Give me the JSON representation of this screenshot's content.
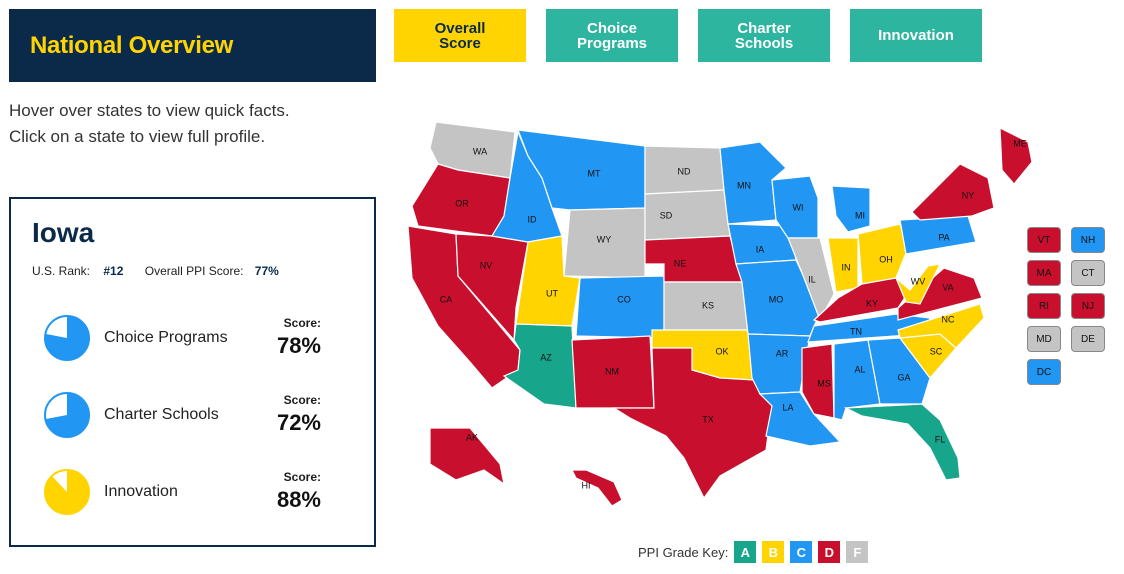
{
  "page_title": "National Overview",
  "tabs": [
    {
      "line1": "Overall",
      "line2": "Score"
    },
    {
      "line1": "Choice",
      "line2": "Programs"
    },
    {
      "line1": "Charter",
      "line2": "Schools"
    },
    {
      "line1": "Innovation",
      "line2": ""
    }
  ],
  "intro": {
    "line1": "Hover over states to view quick facts.",
    "line2": "Click on a state to view full profile."
  },
  "profile": {
    "state": "Iowa",
    "rank_label": "U.S. Rank:",
    "rank_value": "#12",
    "ppi_label": "Overall PPI Score:",
    "ppi_value": "77%",
    "score_caption": "Score:",
    "metrics": [
      {
        "label": "Choice Programs",
        "score": "78%",
        "fraction": 0.78,
        "color": "#2196f3"
      },
      {
        "label": "Charter Schools",
        "score": "72%",
        "fraction": 0.72,
        "color": "#2196f3"
      },
      {
        "label": "Innovation",
        "score": "88%",
        "fraction": 0.88,
        "color": "#ffd400"
      }
    ]
  },
  "grade_colors": {
    "A": "#17a58c",
    "B": "#ffd400",
    "C": "#2196f3",
    "D": "#c8102e",
    "F": "#c4c4c4"
  },
  "map_states": [
    "WA",
    "OR",
    "CA",
    "NV",
    "ID",
    "MT",
    "WY",
    "UT",
    "AZ",
    "CO",
    "NM",
    "ND",
    "SD",
    "NE",
    "KS",
    "OK",
    "TX",
    "MN",
    "IA",
    "MO",
    "AR",
    "LA",
    "WI",
    "IL",
    "MI",
    "IN",
    "OH",
    "KY",
    "TN",
    "MS",
    "AL",
    "GA",
    "FL",
    "SC",
    "NC",
    "VA",
    "WV",
    "PA",
    "NY",
    "ME",
    "AK",
    "HI"
  ],
  "state_grades": {
    "WA": "F",
    "OR": "D",
    "CA": "D",
    "NV": "D",
    "ID": "C",
    "MT": "C",
    "WY": "F",
    "UT": "B",
    "AZ": "A",
    "CO": "C",
    "NM": "D",
    "ND": "F",
    "SD": "F",
    "NE": "D",
    "KS": "F",
    "OK": "B",
    "TX": "D",
    "MN": "C",
    "IA": "C",
    "MO": "C",
    "AR": "C",
    "LA": "C",
    "WI": "C",
    "IL": "F",
    "MI": "C",
    "IN": "B",
    "OH": "B",
    "KY": "D",
    "TN": "C",
    "MS": "D",
    "AL": "C",
    "GA": "C",
    "FL": "A",
    "SC": "B",
    "NC": "B",
    "VA": "D",
    "WV": "B",
    "PA": "C",
    "NY": "D",
    "ME": "D",
    "AK": "D",
    "HI": "D"
  },
  "small_states": [
    {
      "abbr": "VT",
      "grade": "D"
    },
    {
      "abbr": "NH",
      "grade": "C"
    },
    {
      "abbr": "MA",
      "grade": "D"
    },
    {
      "abbr": "CT",
      "grade": "F"
    },
    {
      "abbr": "RI",
      "grade": "D"
    },
    {
      "abbr": "NJ",
      "grade": "D"
    },
    {
      "abbr": "MD",
      "grade": "F"
    },
    {
      "abbr": "DE",
      "grade": "F"
    },
    {
      "abbr": "DC",
      "grade": "C"
    }
  ],
  "grade_key": {
    "label": "PPI Grade Key:",
    "grades": [
      "A",
      "B",
      "C",
      "D",
      "F"
    ]
  }
}
